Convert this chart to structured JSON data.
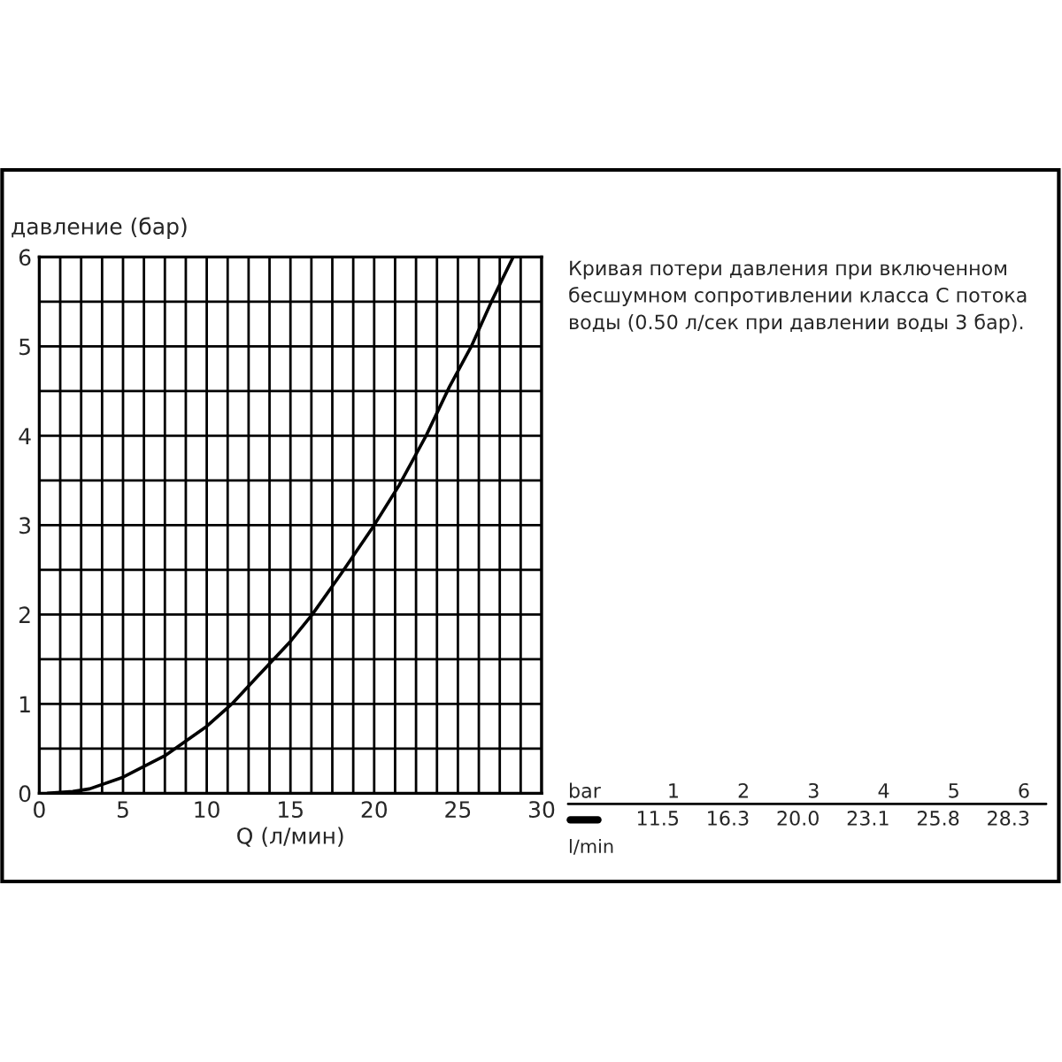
{
  "chart_data": {
    "type": "line",
    "xlabel": "Q (л/мин)",
    "ylabel": "давление (бар)",
    "x": [
      0.5,
      2,
      3,
      5,
      7.5,
      10,
      11.5,
      13,
      15,
      16.3,
      18,
      20,
      21.5,
      23.1,
      24.5,
      25.8,
      27,
      28.3
    ],
    "series": [
      {
        "color": "#000000",
        "values": [
          0,
          0.02,
          0.05,
          0.18,
          0.42,
          0.75,
          1,
          1.3,
          1.7,
          2,
          2.45,
          3,
          3.45,
          4,
          4.55,
          5,
          5.5,
          6
        ]
      }
    ],
    "xlim": [
      0,
      30
    ],
    "ylim": [
      0,
      6
    ],
    "xticks": [
      0,
      {
        "value": 1.25,
        "label": null
      },
      {
        "value": 2.5,
        "label": null
      },
      {
        "value": 3.75,
        "label": null
      },
      5,
      {
        "value": 6.25,
        "label": null
      },
      {
        "value": 7.5,
        "label": null
      },
      {
        "value": 8.75,
        "label": null
      },
      10,
      {
        "value": 11.25,
        "label": null
      },
      {
        "value": 12.5,
        "label": null
      },
      {
        "value": 13.75,
        "label": null
      },
      15,
      {
        "value": 16.25,
        "label": null
      },
      {
        "value": 17.5,
        "label": null
      },
      {
        "value": 18.75,
        "label": null
      },
      20,
      {
        "value": 21.25,
        "label": null
      },
      {
        "value": 22.5,
        "label": null
      },
      {
        "value": 23.75,
        "label": null
      },
      25,
      {
        "value": 26.25,
        "label": null
      },
      {
        "value": 27.5,
        "label": null
      },
      {
        "value": 28.75,
        "label": null
      },
      30
    ],
    "yticks": [
      0,
      {
        "value": 0.5,
        "label": null
      },
      1,
      {
        "value": 1.5,
        "label": null
      },
      2,
      {
        "value": 2.5,
        "label": null
      },
      3,
      {
        "value": 3.5,
        "label": null
      },
      4,
      {
        "value": 4.5,
        "label": null
      },
      5,
      {
        "value": 5.5,
        "label": null
      },
      6
    ],
    "grid": true,
    "line_style": "solid",
    "marker": "none",
    "annotations": [
      "Кривая потери давления при включенном бесшумном сопротивлении класса С потока воды (0.50 л/сек при давлении воды 3 бар).",
      "bar",
      "1",
      "2",
      "3",
      "4",
      "5",
      "6",
      "11.5",
      "16.3",
      "20.0",
      "23.1",
      "25.8",
      "28.3",
      "l/min"
    ]
  }
}
